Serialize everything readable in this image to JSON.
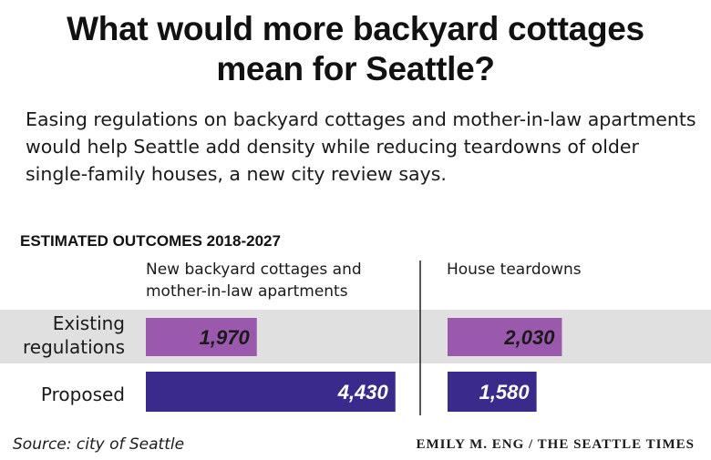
{
  "title_line1": "What would more backyard cottages",
  "title_line2": "mean for Seattle?",
  "subtitle": "Easing regulations on backyard cottages and mother-in-law apartments would help Seattle add density while reducing teardowns of older single-family houses, a new city review says.",
  "section_label": "ESTIMATED OUTCOMES 2018-2027",
  "source": "Source: city of Seattle",
  "credit": "EMILY M. ENG / THE SEATTLE TIMES",
  "colors": {
    "existing_bar": "#9b59ad",
    "proposed_bar": "#3a2a8c",
    "band": "#e0e0e0"
  },
  "chart_data": [
    {
      "type": "bar",
      "title": "New backyard cottages and mother-in-law apartments",
      "categories": [
        "Existing regulations",
        "Proposed"
      ],
      "values": [
        1970,
        4430
      ],
      "data_labels": [
        "1,970",
        "4,430"
      ]
    },
    {
      "type": "bar",
      "title": "House teardowns",
      "categories": [
        "Existing regulations",
        "Proposed"
      ],
      "values": [
        2030,
        1580
      ],
      "data_labels": [
        "2,030",
        "1,580"
      ]
    }
  ],
  "row_labels": {
    "existing_line1": "Existing",
    "existing_line2": "regulations",
    "proposed": "Proposed"
  },
  "col_headers": {
    "left_line1": "New backyard cottages and",
    "left_line2": "mother-in-law apartments",
    "right": "House teardowns"
  }
}
